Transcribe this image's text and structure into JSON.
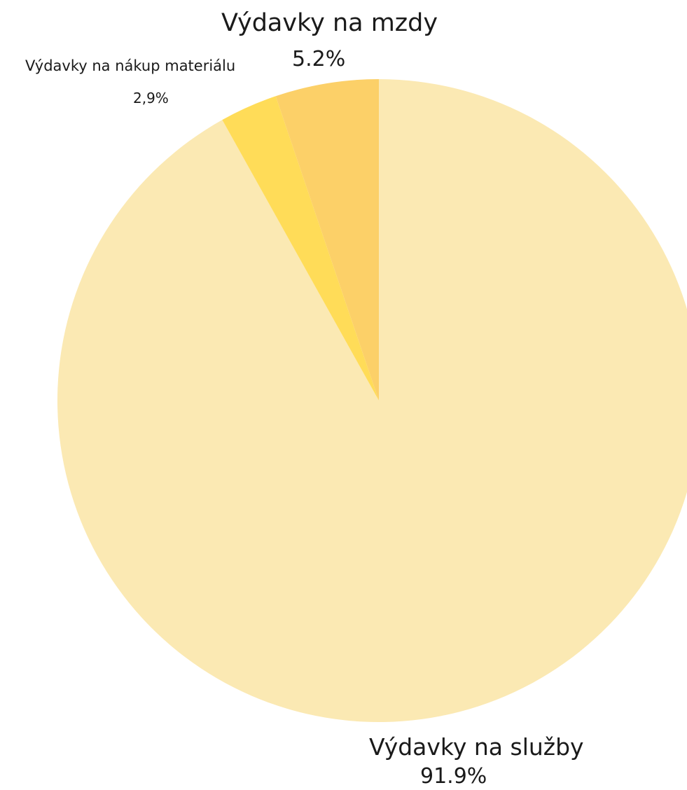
{
  "chart_data": {
    "type": "pie",
    "slices": [
      {
        "label": "Výdavky na služby",
        "value_text": "91.9%",
        "value": 91.9,
        "color": "#FBE9B3"
      },
      {
        "label": "Výdavky na nákup materiálu",
        "value_text": "2,9%",
        "value": 2.9,
        "color": "#FFDC58"
      },
      {
        "label": "Výdavky na mzdy",
        "value_text": "5.2%",
        "value": 5.2,
        "color": "#FCD068"
      }
    ]
  }
}
